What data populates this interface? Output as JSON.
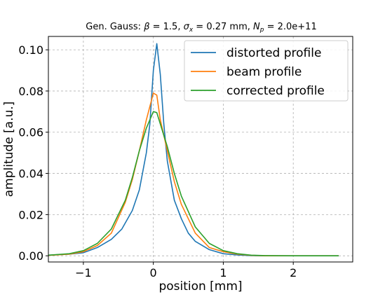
{
  "chart_data": {
    "type": "line",
    "title": {
      "prefix": "Gen. Gauss: ",
      "beta_symbol": "β",
      "beta_value": " = 1.5, ",
      "sigma_symbol": "σ",
      "sigma_sub": "x",
      "sigma_value": " = 0.27 mm, ",
      "np_symbol": "N",
      "np_sub": "p",
      "np_value": " = 2.0e+11"
    },
    "xlabel": "position [mm]",
    "ylabel": "amplitude [a.u.]",
    "xlim": [
      -1.5,
      2.85
    ],
    "ylim": [
      -0.003,
      0.1065
    ],
    "x_ticks": [
      -1,
      0,
      1,
      2
    ],
    "x_tick_labels": [
      "−1",
      "0",
      "1",
      "2"
    ],
    "y_ticks": [
      0.0,
      0.02,
      0.04,
      0.06,
      0.08,
      0.1
    ],
    "y_tick_labels": [
      "0.00",
      "0.02",
      "0.04",
      "0.06",
      "0.08",
      "0.10"
    ],
    "grid": true,
    "legend_position": "top-right",
    "series": [
      {
        "name": "distorted profile",
        "color": "#1f77b4",
        "x": [
          -1.5,
          -1.2,
          -1.0,
          -0.8,
          -0.6,
          -0.45,
          -0.3,
          -0.2,
          -0.1,
          -0.05,
          0.0,
          0.05,
          0.1,
          0.15,
          0.2,
          0.3,
          0.4,
          0.5,
          0.6,
          0.8,
          1.0,
          1.2,
          1.4,
          1.6,
          2.0,
          2.65
        ],
        "y": [
          0.0003,
          0.0008,
          0.0015,
          0.004,
          0.008,
          0.013,
          0.022,
          0.032,
          0.05,
          0.064,
          0.09,
          0.103,
          0.088,
          0.064,
          0.046,
          0.027,
          0.018,
          0.011,
          0.007,
          0.003,
          0.001,
          0.0004,
          0.0001,
          0.0,
          0.0,
          0.0
        ]
      },
      {
        "name": "beam profile",
        "color": "#ff7f0e",
        "x": [
          -1.5,
          -1.2,
          -1.0,
          -0.8,
          -0.6,
          -0.4,
          -0.3,
          -0.2,
          -0.1,
          0.0,
          0.05,
          0.1,
          0.2,
          0.3,
          0.4,
          0.6,
          0.8,
          1.0,
          1.2,
          1.4,
          1.6,
          2.0,
          2.65
        ],
        "y": [
          0.0002,
          0.0008,
          0.002,
          0.005,
          0.011,
          0.026,
          0.037,
          0.051,
          0.066,
          0.079,
          0.078,
          0.066,
          0.051,
          0.036,
          0.025,
          0.011,
          0.004,
          0.002,
          0.0008,
          0.0002,
          0.0,
          0.0,
          0.0
        ]
      },
      {
        "name": "corrected profile",
        "color": "#2ca02c",
        "x": [
          -1.5,
          -1.2,
          -1.0,
          -0.8,
          -0.6,
          -0.4,
          -0.3,
          -0.2,
          -0.1,
          0.0,
          0.05,
          0.1,
          0.2,
          0.3,
          0.4,
          0.6,
          0.8,
          1.0,
          1.2,
          1.4,
          1.6,
          2.0,
          2.65
        ],
        "y": [
          0.0003,
          0.001,
          0.0025,
          0.006,
          0.013,
          0.027,
          0.038,
          0.051,
          0.062,
          0.07,
          0.0695,
          0.064,
          0.053,
          0.04,
          0.029,
          0.014,
          0.006,
          0.0025,
          0.001,
          0.0003,
          0.0001,
          0.0,
          0.0
        ]
      }
    ]
  }
}
